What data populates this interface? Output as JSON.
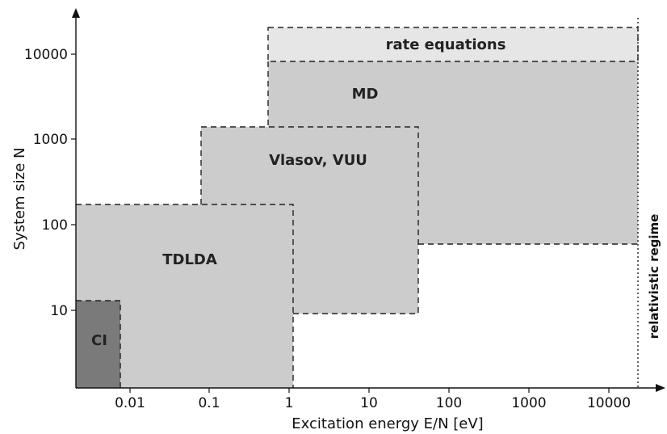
{
  "diagram": {
    "x_axis": {
      "title": "Excitation energy E/N [eV]",
      "ticks": [
        "0.01",
        "0.1",
        "1",
        "10",
        "100",
        "1000",
        "10000"
      ]
    },
    "y_axis": {
      "title": "System size N",
      "ticks": [
        "10",
        "100",
        "1000",
        "10000"
      ]
    },
    "regions": [
      {
        "id": "rate-equations",
        "label": "rate equations",
        "color": "#e6e6e6"
      },
      {
        "id": "md",
        "label": "MD",
        "color": "#cccccc"
      },
      {
        "id": "vlasov-vuu",
        "label": "Vlasov, VUU",
        "color": "#cccccc"
      },
      {
        "id": "tdlda",
        "label": "TDLDA",
        "color": "#cccccc"
      },
      {
        "id": "ci",
        "label": "CI",
        "color": "#7a7a7a"
      }
    ],
    "boundary": {
      "label": "relativistic regime"
    }
  }
}
